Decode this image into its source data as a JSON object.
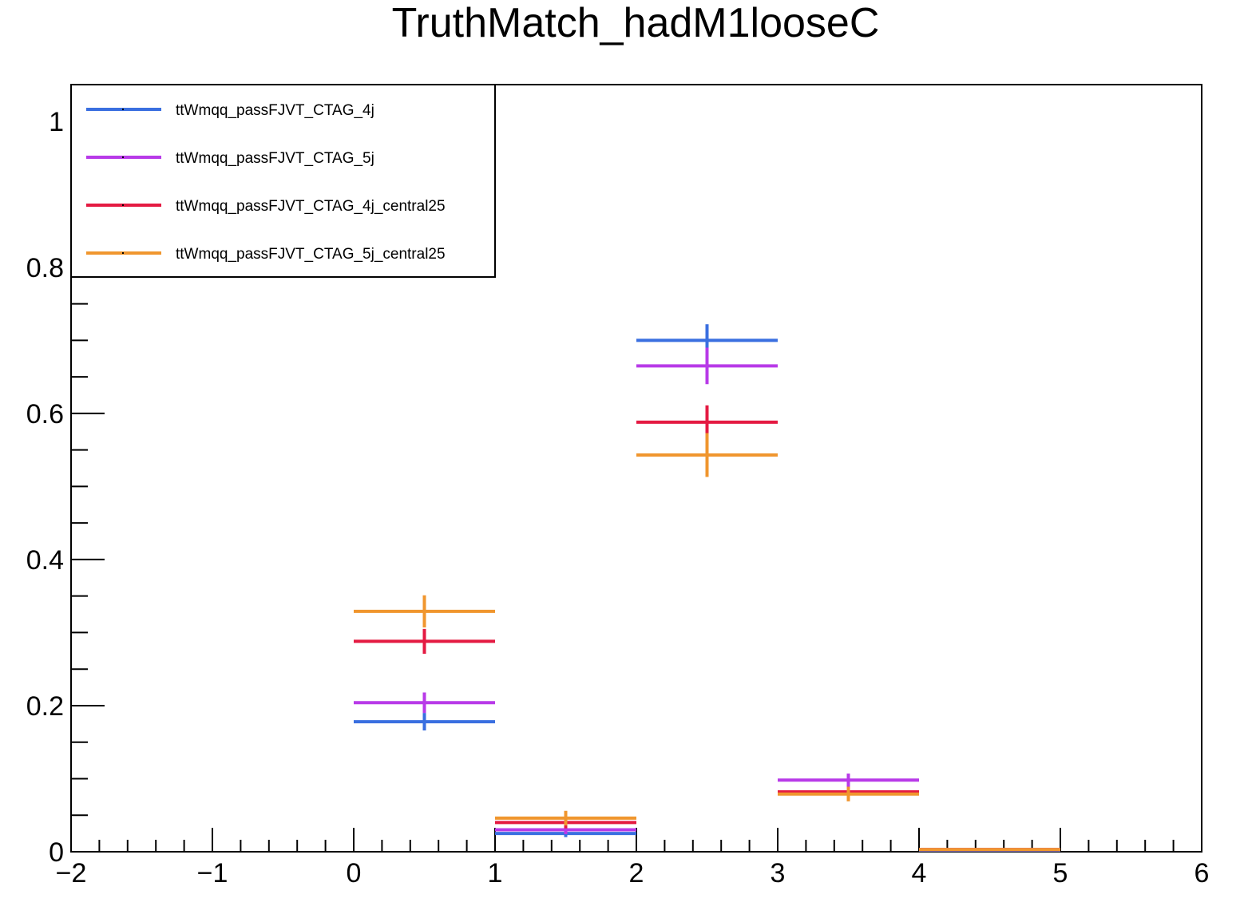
{
  "chart_data": {
    "type": "scatter",
    "title": "TruthMatch_hadM1looseC",
    "xlabel": "",
    "ylabel": "",
    "xlim": [
      -2,
      6
    ],
    "ylim": [
      0,
      1.05
    ],
    "x_ticks": [
      -2,
      -1,
      0,
      1,
      2,
      3,
      4,
      5,
      6
    ],
    "x_tick_labels": [
      "−2",
      "−1",
      "0",
      "1",
      "2",
      "3",
      "4",
      "5",
      "6"
    ],
    "y_ticks": [
      0,
      0.2,
      0.4,
      0.6,
      0.8,
      1
    ],
    "y_tick_labels": [
      "0",
      "0.2",
      "0.4",
      "0.6",
      "0.8",
      "1"
    ],
    "bins": [
      [
        0,
        1
      ],
      [
        1,
        2
      ],
      [
        2,
        3
      ],
      [
        3,
        4
      ],
      [
        4,
        5
      ]
    ],
    "legend_position": "top-left",
    "series": [
      {
        "name": "ttWmqq_passFJVT_CTAG_4j",
        "color": "#3a6fe0",
        "values": [
          0.178,
          0.025,
          0.7,
          0.08,
          0.002
        ],
        "errors": [
          0.012,
          0.005,
          0.022,
          0.006,
          0.001
        ]
      },
      {
        "name": "ttWmqq_passFJVT_CTAG_5j",
        "color": "#b83ae8",
        "values": [
          0.204,
          0.03,
          0.665,
          0.098,
          0.003
        ],
        "errors": [
          0.014,
          0.006,
          0.025,
          0.009,
          0.001
        ]
      },
      {
        "name": "ttWmqq_passFJVT_CTAG_4j_central25",
        "color": "#e41a42",
        "values": [
          0.288,
          0.04,
          0.588,
          0.082,
          0.003
        ],
        "errors": [
          0.017,
          0.008,
          0.023,
          0.007,
          0.001
        ]
      },
      {
        "name": "ttWmqq_passFJVT_CTAG_5j_central25",
        "color": "#f0962e",
        "values": [
          0.329,
          0.046,
          0.543,
          0.079,
          0.003
        ],
        "errors": [
          0.022,
          0.01,
          0.03,
          0.01,
          0.001
        ]
      }
    ]
  }
}
